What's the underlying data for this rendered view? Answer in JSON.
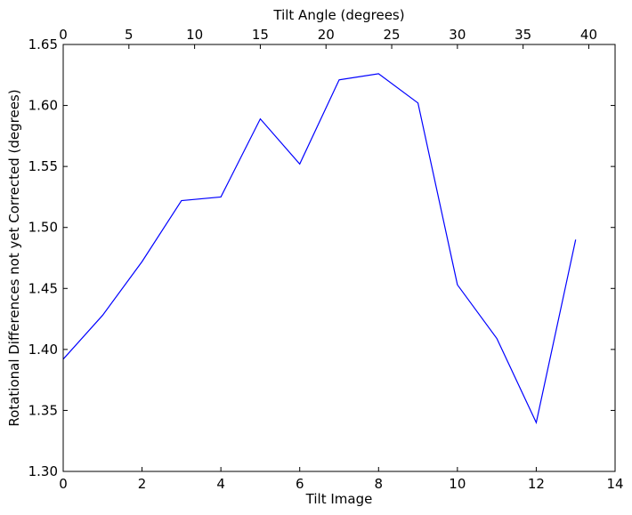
{
  "chart_data": {
    "type": "line",
    "xlabel": "Tilt Image",
    "ylabel": "Rotational Differences not yet Corrected (degrees)",
    "top_xlabel": "Tilt Angle (degrees)",
    "xlim": [
      0,
      14
    ],
    "ylim": [
      1.3,
      1.65
    ],
    "top_xlim": [
      0,
      42
    ],
    "grid": false,
    "x_ticks": [
      0,
      2,
      4,
      6,
      8,
      10,
      12,
      14
    ],
    "x_tick_labels": [
      "0",
      "2",
      "4",
      "6",
      "8",
      "10",
      "12",
      "14"
    ],
    "y_ticks": [
      1.3,
      1.35,
      1.4,
      1.45,
      1.5,
      1.55,
      1.6,
      1.65
    ],
    "y_tick_labels": [
      "1.30",
      "1.35",
      "1.40",
      "1.45",
      "1.50",
      "1.55",
      "1.60",
      "1.65"
    ],
    "top_x_ticks": [
      0,
      5,
      10,
      15,
      20,
      25,
      30,
      35,
      40
    ],
    "top_x_tick_labels": [
      "0",
      "5",
      "10",
      "15",
      "20",
      "25",
      "30",
      "35",
      "40"
    ],
    "line_color": "#0000ff",
    "series": [
      {
        "x": [
          0,
          1,
          2,
          3,
          4,
          5,
          6,
          7,
          8,
          9,
          10,
          11,
          12,
          13
        ],
        "values": [
          1.392,
          1.428,
          1.472,
          1.522,
          1.525,
          1.589,
          1.552,
          1.621,
          1.626,
          1.602,
          1.453,
          1.409,
          1.34,
          1.49
        ]
      }
    ]
  }
}
